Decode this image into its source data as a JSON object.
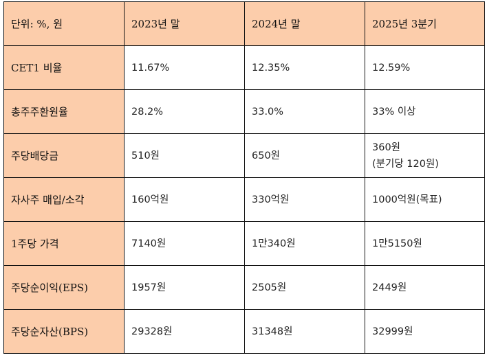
{
  "header": [
    "단위: %, 원",
    "2023년 말",
    "2024년 말",
    "2025년 3분기"
  ],
  "rows": [
    {
      "label": "CET1 비율",
      "values": [
        "11.67%",
        "12.35%",
        "12.59%"
      ]
    },
    {
      "label": "총주주환원율",
      "values": [
        "28.2%",
        "33.0%",
        "33% 이상"
      ]
    },
    {
      "label": "주당배당금",
      "values": [
        "510원",
        "650원",
        "360원"
      ],
      "note": "(분기당 120원)"
    },
    {
      "label": "자사주 매입/소각",
      "values": [
        "160억원",
        "330억원",
        "1000억원(목표)"
      ]
    },
    {
      "label": "1주당 가격",
      "values": [
        "7140원",
        "1만340원",
        "1만5150원"
      ]
    },
    {
      "label": "주당순이익(EPS)",
      "values": [
        "1957원",
        "2505원",
        "2449원"
      ]
    },
    {
      "label": "주당순자산(BPS)",
      "values": [
        "29328원",
        "31348원",
        "32999원"
      ]
    }
  ]
}
